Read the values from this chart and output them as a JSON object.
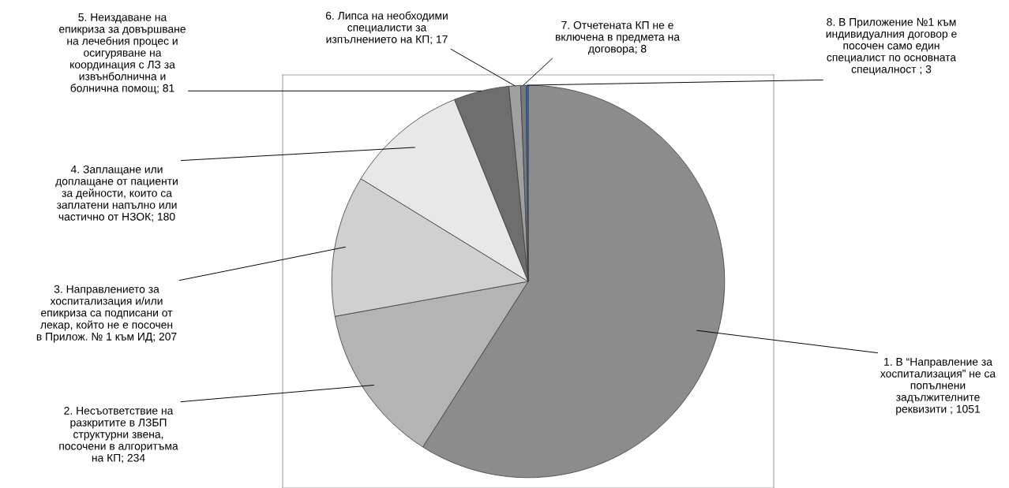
{
  "chart_data": {
    "type": "pie",
    "categories": [
      "1. В “Направление за хоспитализация” не са попълнени задължителните реквизити ; 1051",
      "2. Несъответствие на разкритите в ЛЗБП структурни звена, посочени в алгоритъма на КП; 234",
      "3. Направлението за хоспитализация и/или епикриза са подписани от лекар, който не е посочен в Прилож. № 1 към ИД; 207",
      "4. Заплащане или доплащане от пациенти за дейности, които са заплатени напълно или частично от НЗОК; 180",
      "5. Неиздаване на епикриза за довършване на лечебния процес и осигуряване на координация с ЛЗ за извънболнична и болнична помощ; 81",
      "6. Липса на необходими специалисти за изпълнението на КП; 17",
      "7. Отчетената КП не е включена в предмета на договора; 8",
      "8. В Приложение №1 към индивидуалния договор е посочен само един специалист по основната специалност ; 3"
    ],
    "values": [
      1051,
      234,
      207,
      180,
      81,
      17,
      8,
      3
    ],
    "colors": [
      "#8c8c8c",
      "#b4b4b4",
      "#d0d0d0",
      "#e8e8e8",
      "#6e6e6e",
      "#a0a0a0",
      "#7a7a7a",
      "#1f6fd6"
    ]
  }
}
